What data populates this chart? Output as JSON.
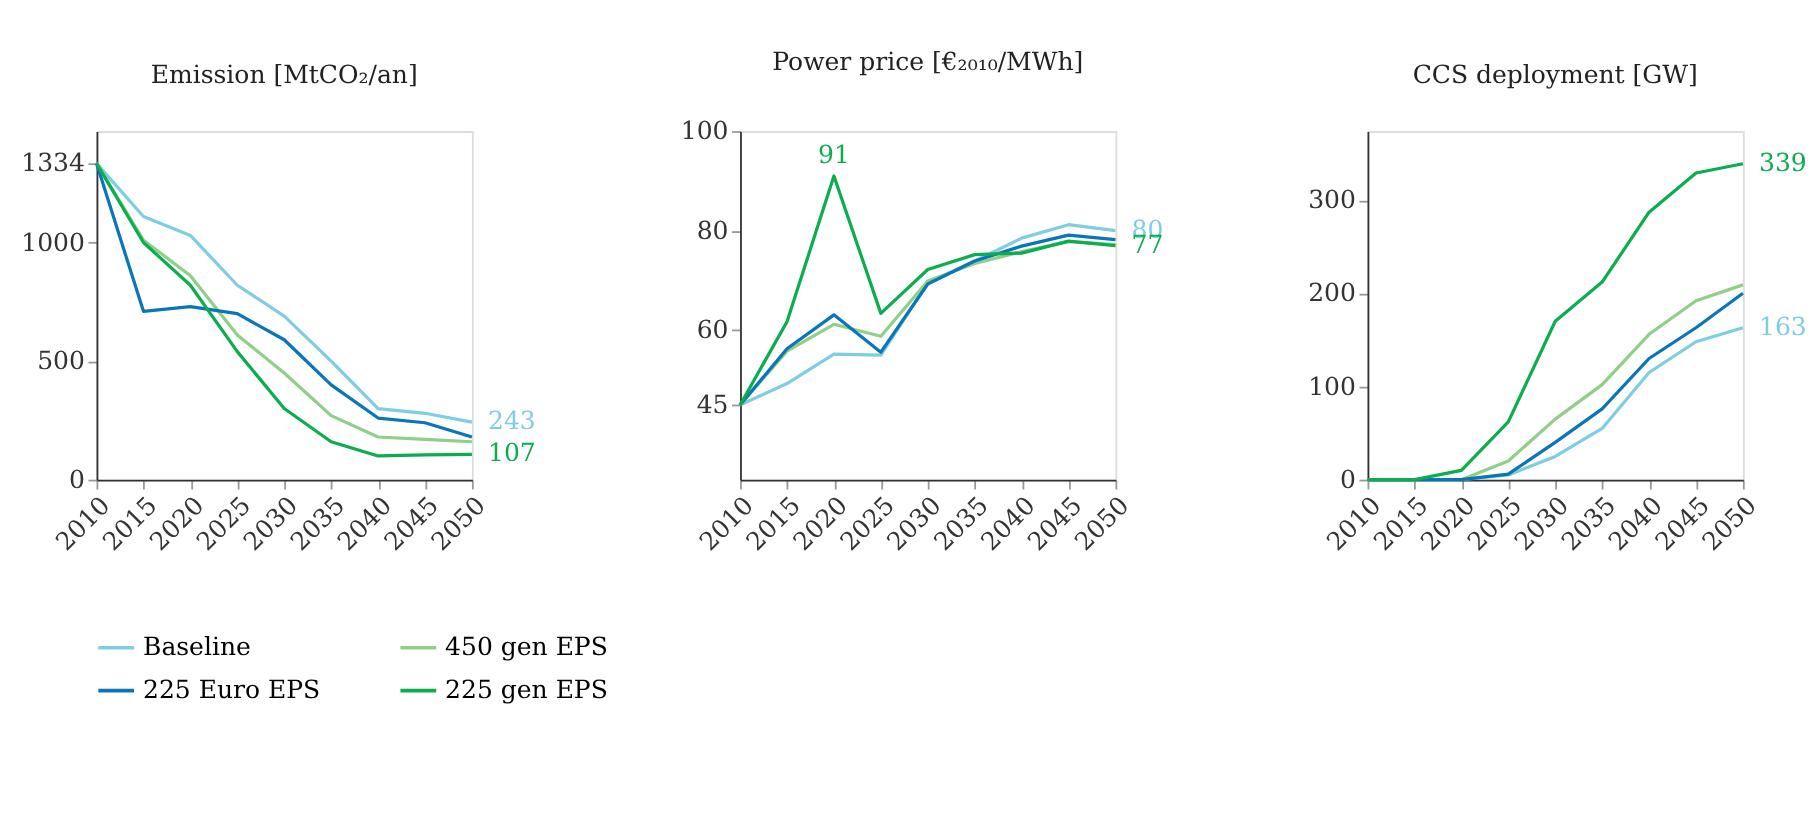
{
  "chart_data": [
    {
      "type": "line",
      "title": "Emission [MtCO₂/an]",
      "x": [
        2010,
        2015,
        2020,
        2025,
        2030,
        2035,
        2040,
        2045,
        2050
      ],
      "xlim": [
        2010,
        2050
      ],
      "xticks": [
        2010,
        2015,
        2020,
        2025,
        2030,
        2035,
        2040,
        2045,
        2050
      ],
      "ylim": [
        0,
        1470
      ],
      "yticks": [
        0,
        500,
        1000,
        1334
      ],
      "grid": false,
      "legend": "bottom",
      "marker": "none",
      "series": [
        {
          "name": "Baseline",
          "color": "#7fcde3",
          "values": [
            1334,
            1110,
            1030,
            820,
            690,
            500,
            300,
            280,
            243
          ],
          "value_labels": [
            null,
            null,
            null,
            null,
            null,
            null,
            null,
            null,
            "243"
          ]
        },
        {
          "name": "450 gen EPS",
          "color": "#8fcf87",
          "values": [
            1334,
            1010,
            860,
            610,
            450,
            270,
            180,
            170,
            160
          ]
        },
        {
          "name": "225 Euro EPS",
          "color": "#0a75b8",
          "values": [
            1334,
            710,
            730,
            700,
            590,
            400,
            260,
            240,
            180
          ]
        },
        {
          "name": "225 gen EPS",
          "color": "#0bad4f",
          "values": [
            1334,
            1000,
            820,
            540,
            300,
            160,
            100,
            105,
            107
          ],
          "value_labels": [
            null,
            null,
            null,
            null,
            null,
            null,
            null,
            null,
            "107"
          ]
        }
      ]
    },
    {
      "type": "line",
      "title": "Power price [€₂₀₁₀/MWh]",
      "x": [
        2010,
        2015,
        2020,
        2025,
        2030,
        2035,
        2040,
        2045,
        2050
      ],
      "xlim": [
        2010,
        2050
      ],
      "xticks": [
        2010,
        2015,
        2020,
        2025,
        2030,
        2035,
        2040,
        2045,
        2050
      ],
      "ylim": [
        30,
        100
      ],
      "yticks": [
        45,
        60,
        80,
        100
      ],
      "grid": false,
      "marker": "none",
      "series": [
        {
          "name": "Baseline",
          "color": "#7fcde3",
          "values": [
            45,
            49.3,
            55.2,
            55,
            69.5,
            73.9,
            78.5,
            81.2,
            80
          ],
          "value_labels": [
            null,
            null,
            null,
            null,
            null,
            null,
            null,
            null,
            "80"
          ]
        },
        {
          "name": "450 gen EPS",
          "color": "#8fcf87",
          "values": [
            45,
            55.8,
            61.2,
            58.8,
            69.9,
            73.4,
            75.8,
            77.8,
            77.2
          ]
        },
        {
          "name": "225 Euro EPS",
          "color": "#0a75b8",
          "values": [
            45,
            56.3,
            63.1,
            55.6,
            69.3,
            73.9,
            76.9,
            79.1,
            78.2
          ]
        },
        {
          "name": "225 gen EPS",
          "color": "#0bad4f",
          "values": [
            45,
            61.7,
            91,
            63.4,
            72.2,
            75.2,
            75.5,
            77.9,
            77
          ],
          "value_labels": [
            null,
            null,
            "91",
            null,
            null,
            null,
            null,
            null,
            "77"
          ]
        }
      ]
    },
    {
      "type": "line",
      "title": "CCS deployment [GW]",
      "x": [
        2010,
        2015,
        2020,
        2025,
        2030,
        2035,
        2040,
        2045,
        2050
      ],
      "xlim": [
        2010,
        2050
      ],
      "xticks": [
        2010,
        2015,
        2020,
        2025,
        2030,
        2035,
        2040,
        2045,
        2050
      ],
      "ylim": [
        0,
        374
      ],
      "yticks": [
        0,
        100,
        200,
        300
      ],
      "grid": false,
      "marker": "none",
      "series": [
        {
          "name": "Baseline",
          "color": "#7fcde3",
          "values": [
            0,
            0,
            0,
            5,
            25,
            55,
            115,
            148,
            163
          ],
          "value_labels": [
            null,
            null,
            null,
            null,
            null,
            null,
            null,
            null,
            "163"
          ]
        },
        {
          "name": "450 gen EPS",
          "color": "#8fcf87",
          "values": [
            0,
            0,
            0,
            20,
            65,
            102,
            156,
            192,
            209
          ]
        },
        {
          "name": "225 Euro EPS",
          "color": "#0a75b8",
          "values": [
            0,
            0,
            0,
            6,
            40,
            76,
            130,
            163,
            200
          ]
        },
        {
          "name": "225 gen EPS",
          "color": "#0bad4f",
          "values": [
            0,
            0,
            10,
            62,
            170,
            212,
            287,
            329,
            339
          ],
          "value_labels": [
            null,
            null,
            null,
            null,
            null,
            null,
            null,
            null,
            "339"
          ]
        }
      ]
    }
  ]
}
